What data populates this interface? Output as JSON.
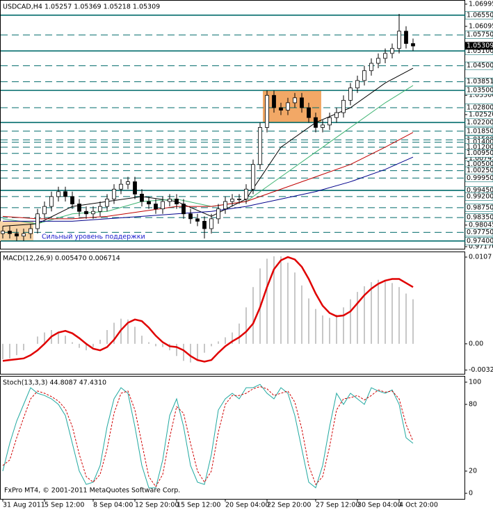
{
  "chart_data": [
    {
      "type": "candlestick",
      "title": "USDCAD,H4 1.05257 1.05369 1.05218 1.05309",
      "categories": [
        "31 Aug 2011",
        null,
        null,
        null,
        null,
        null,
        "5 Sep 12:00",
        null,
        null,
        null,
        null,
        null,
        null,
        "8 Sep 04:00",
        null,
        null,
        null,
        null,
        null,
        "12 Sep 20:00",
        null,
        null,
        null,
        null,
        null,
        "15 Sep 12:00",
        null,
        null,
        null,
        null,
        null,
        null,
        "20 Sep 04:00",
        null,
        null,
        null,
        null,
        null,
        "22 Sep 20:00",
        null,
        null,
        null,
        null,
        null,
        null,
        "27 Sep 12:00",
        null,
        null,
        null,
        null,
        null,
        "30 Sep 04:00",
        null,
        null,
        null,
        null,
        null,
        "4 Oct 20:00",
        null,
        null
      ],
      "open": [
        0.977,
        0.978,
        0.977,
        0.976,
        0.977,
        0.979,
        0.985,
        0.988,
        0.992,
        0.994,
        0.992,
        0.989,
        0.986,
        0.985,
        0.986,
        0.988,
        0.991,
        0.995,
        0.997,
        0.998,
        0.993,
        0.99,
        0.989,
        0.987,
        0.99,
        0.991,
        0.989,
        0.985,
        0.983,
        0.982,
        0.979,
        0.983,
        0.987,
        0.99,
        0.991,
        0.991,
        0.995,
        1.005,
        1.02,
        1.033,
        1.028,
        1.027,
        1.03,
        1.032,
        1.028,
        1.024,
        1.02,
        1.021,
        1.024,
        1.026,
        1.031,
        1.036,
        1.039,
        1.043,
        1.046,
        1.048,
        1.05,
        1.052,
        1.059,
        1.054
      ],
      "high": [
        0.98,
        0.98,
        0.979,
        0.979,
        0.981,
        0.987,
        0.99,
        0.994,
        0.996,
        0.996,
        0.994,
        0.991,
        0.988,
        0.988,
        0.99,
        0.993,
        0.997,
        0.999,
        1.0,
        1.0,
        0.995,
        0.992,
        0.991,
        0.992,
        0.993,
        0.993,
        0.991,
        0.987,
        0.985,
        0.984,
        0.985,
        0.989,
        0.992,
        0.993,
        0.993,
        0.997,
        1.007,
        1.022,
        1.035,
        1.035,
        1.03,
        1.032,
        1.034,
        1.034,
        1.03,
        1.026,
        1.023,
        1.026,
        1.028,
        1.033,
        1.038,
        1.041,
        1.045,
        1.048,
        1.05,
        1.052,
        1.054,
        1.066,
        1.061,
        1.056
      ],
      "low": [
        0.975,
        0.975,
        0.974,
        0.974,
        0.975,
        0.977,
        0.983,
        0.986,
        0.99,
        0.99,
        0.987,
        0.984,
        0.983,
        0.983,
        0.984,
        0.986,
        0.989,
        0.993,
        0.995,
        0.991,
        0.988,
        0.987,
        0.985,
        0.985,
        0.988,
        0.987,
        0.983,
        0.981,
        0.98,
        0.975,
        0.977,
        0.981,
        0.985,
        0.988,
        0.989,
        0.989,
        0.993,
        1.003,
        1.018,
        1.026,
        1.025,
        1.025,
        1.028,
        1.026,
        1.022,
        1.018,
        1.018,
        1.019,
        1.022,
        1.024,
        1.029,
        1.034,
        1.037,
        1.041,
        1.044,
        1.046,
        1.048,
        1.05,
        1.052,
        1.051
      ],
      "close": [
        0.978,
        0.977,
        0.976,
        0.977,
        0.979,
        0.985,
        0.988,
        0.992,
        0.994,
        0.992,
        0.989,
        0.986,
        0.985,
        0.986,
        0.988,
        0.991,
        0.995,
        0.997,
        0.998,
        0.993,
        0.99,
        0.989,
        0.987,
        0.99,
        0.991,
        0.989,
        0.985,
        0.983,
        0.982,
        0.979,
        0.983,
        0.987,
        0.99,
        0.991,
        0.991,
        0.995,
        1.005,
        1.02,
        1.033,
        1.028,
        1.027,
        1.03,
        1.032,
        1.028,
        1.024,
        1.02,
        1.021,
        1.024,
        1.026,
        1.031,
        1.036,
        1.039,
        1.043,
        1.046,
        1.048,
        1.05,
        1.052,
        1.059,
        1.054,
        1.053
      ],
      "ma_x": [
        0,
        5,
        10,
        15,
        20,
        25,
        30,
        35,
        40,
        45,
        50,
        55,
        59
      ],
      "moving_averages": [
        {
          "color": "#000000",
          "values": [
            0.98,
            0.981,
            0.988,
            0.99,
            0.992,
            0.99,
            0.984,
            0.991,
            1.012,
            1.022,
            1.028,
            1.038,
            1.044
          ]
        },
        {
          "color": "#3cb371",
          "values": [
            0.983,
            0.981,
            0.985,
            0.986,
            0.99,
            0.991,
            0.988,
            0.99,
            1.0,
            1.01,
            1.02,
            1.03,
            1.037
          ]
        },
        {
          "color": "#c00000",
          "values": [
            0.984,
            0.983,
            0.983,
            0.984,
            0.986,
            0.988,
            0.988,
            0.99,
            0.995,
            1.0,
            1.005,
            1.012,
            1.018
          ]
        },
        {
          "color": "#00008b",
          "values": [
            0.982,
            0.982,
            0.982,
            0.983,
            0.984,
            0.985,
            0.986,
            0.988,
            0.991,
            0.994,
            0.998,
            1.003,
            1.008
          ]
        }
      ],
      "zones": [
        {
          "color": "#f2a866",
          "x": [
            37.4,
            45.8
          ],
          "y": [
            1.022,
            1.035
          ]
        },
        {
          "color": "#f7d3a6",
          "x": [
            -0.4,
            4.4
          ],
          "y": [
            0.974,
            0.982
          ]
        }
      ],
      "annotation": "Сильный уровень поддержки",
      "ylim": [
        0.97086,
        1.07135
      ],
      "yticks": [
        {
          "value": 1.06995,
          "label": "1.06995"
        },
        {
          "value": 1.06095,
          "label": "1.06095"
        },
        {
          "value": 1.033,
          "label": "1.03300"
        },
        {
          "value": 1.0252,
          "label": "1.02520"
        },
        {
          "value": 1.00745,
          "label": "1.00745"
        },
        {
          "value": 0.98045,
          "label": "0.98045"
        },
        {
          "value": 0.9717,
          "label": "0.97170"
        }
      ],
      "current": {
        "value": 1.05309,
        "label": "1.05309"
      },
      "level_color": "#006b6b",
      "levels": [
        {
          "value": 1.0655,
          "label": "1.06550",
          "style": "solid"
        },
        {
          "value": 1.0575,
          "label": "1.05750",
          "style": "dashed"
        },
        {
          "value": 1.051,
          "label": "1.05100",
          "style": "solid"
        },
        {
          "value": 1.045,
          "label": "1.04500",
          "style": "dashed"
        },
        {
          "value": 1.03851,
          "label": "1.03851",
          "style": "dashed"
        },
        {
          "value": 1.035,
          "label": "1.03500",
          "style": "solid"
        },
        {
          "value": 1.028,
          "label": "1.02800",
          "style": "dashed"
        },
        {
          "value": 1.022,
          "label": "1.02200",
          "style": "solid"
        },
        {
          "value": 1.0185,
          "label": "1.01850",
          "style": "dashed"
        },
        {
          "value": 1.015,
          "label": "1.01500",
          "style": "dashed"
        },
        {
          "value": 1.014,
          "label": "1.01400",
          "style": "dashed"
        },
        {
          "value": 1.012,
          "label": "1.01200",
          "style": "dashed"
        },
        {
          "value": 1.0095,
          "label": "1.00950",
          "style": "dashed"
        },
        {
          "value": 1.005,
          "label": "1.00500",
          "style": "dashed"
        },
        {
          "value": 1.0025,
          "label": "1.00250",
          "style": "dashed"
        },
        {
          "value": 0.9995,
          "label": "0.99950",
          "style": "dashed"
        },
        {
          "value": 0.9945,
          "label": "0.99450",
          "style": "solid"
        },
        {
          "value": 0.992,
          "label": "0.99200",
          "style": "dashed"
        },
        {
          "value": 0.9875,
          "label": "0.98750",
          "style": "dashed"
        },
        {
          "value": 0.9835,
          "label": "0.98350",
          "style": "dashed"
        },
        {
          "value": 0.9775,
          "label": "0.97750",
          "style": "dashed"
        },
        {
          "value": 0.974,
          "label": "0.97400",
          "style": "solid"
        }
      ],
      "footer": "FxPro MT4, © 2001-2011 MetaQuotes Software Corp."
    },
    {
      "type": "macd",
      "title": "MACD(12,26,9) 0.005470 0.006714",
      "ylim": [
        -0.0037,
        0.0113
      ],
      "yticks": [
        0.0107,
        {
          "value": 0,
          "label": "0.00"
        },
        -0.00324
      ],
      "series": [
        {
          "color": "#b4b4b4",
          "values": [
            -0.0019,
            -0.0018,
            -0.0014,
            -0.0008,
            0.0,
            0.0009,
            0.0014,
            0.0017,
            0.0015,
            0.001,
            0.0002,
            -0.0005,
            -0.0008,
            -0.0004,
            0.0005,
            0.0017,
            0.0026,
            0.0031,
            0.003,
            0.0021,
            0.001,
            0.0002,
            -0.0003,
            -0.0004,
            -0.0008,
            -0.0015,
            -0.0021,
            -0.0023,
            -0.002,
            -0.0011,
            -0.0003,
            0.0003,
            0.0008,
            0.0014,
            0.0025,
            0.0045,
            0.007,
            0.0093,
            0.0105,
            0.0108,
            0.0108,
            0.01,
            0.0088,
            0.0072,
            0.0056,
            0.0043,
            0.0035,
            0.0032,
            0.0036,
            0.0045,
            0.0055,
            0.0064,
            0.0071,
            0.0076,
            0.0079,
            0.0079,
            0.0075,
            0.007,
            0.0062,
            0.0055
          ]
        },
        {
          "color": "#e00000",
          "values": [
            -0.0021,
            -0.002,
            -0.0019,
            -0.0018,
            -0.0014,
            -0.0008,
            0.0,
            0.0009,
            0.0014,
            0.0016,
            0.0013,
            0.0007,
            0.0,
            -0.0006,
            -0.0008,
            -0.0004,
            0.0005,
            0.0017,
            0.0026,
            0.003,
            0.0028,
            0.002,
            0.001,
            0.0002,
            -0.0003,
            -0.0004,
            -0.0008,
            -0.0015,
            -0.002,
            -0.0022,
            -0.002,
            -0.0011,
            -0.0003,
            0.0003,
            0.0008,
            0.0015,
            0.0025,
            0.0045,
            0.007,
            0.0092,
            0.0103,
            0.0107,
            0.0104,
            0.0095,
            0.008,
            0.0062,
            0.0047,
            0.0038,
            0.0034,
            0.0035,
            0.004,
            0.005,
            0.006,
            0.0068,
            0.0074,
            0.0078,
            0.008,
            0.008,
            0.0075,
            0.007
          ]
        }
      ]
    },
    {
      "type": "stochastic",
      "title": "Stoch(13,3,3) 44.8087 47.4310",
      "ylim": [
        -5,
        105
      ],
      "yticks": [
        0,
        20,
        80,
        100
      ],
      "series": [
        {
          "color": "#20a8a0",
          "values": [
            20,
            45,
            65,
            80,
            95,
            90,
            88,
            85,
            80,
            70,
            45,
            20,
            8,
            10,
            25,
            60,
            85,
            95,
            90,
            60,
            25,
            5,
            5,
            30,
            70,
            85,
            60,
            25,
            10,
            8,
            35,
            75,
            85,
            90,
            85,
            95,
            95,
            98,
            90,
            85,
            95,
            90,
            70,
            40,
            10,
            5,
            25,
            60,
            90,
            80,
            90,
            85,
            80,
            95,
            92,
            90,
            93,
            80,
            50,
            45
          ]
        },
        {
          "color": "#d00000",
          "values": [
            25,
            30,
            50,
            68,
            85,
            92,
            90,
            87,
            83,
            76,
            60,
            35,
            15,
            10,
            17,
            40,
            72,
            90,
            92,
            75,
            45,
            15,
            6,
            17,
            50,
            78,
            72,
            45,
            20,
            10,
            20,
            55,
            80,
            88,
            88,
            90,
            94,
            96,
            94,
            88,
            90,
            92,
            82,
            58,
            25,
            8,
            15,
            42,
            75,
            85,
            86,
            88,
            84,
            88,
            93,
            91,
            92,
            85,
            62,
            47
          ]
        }
      ]
    }
  ]
}
